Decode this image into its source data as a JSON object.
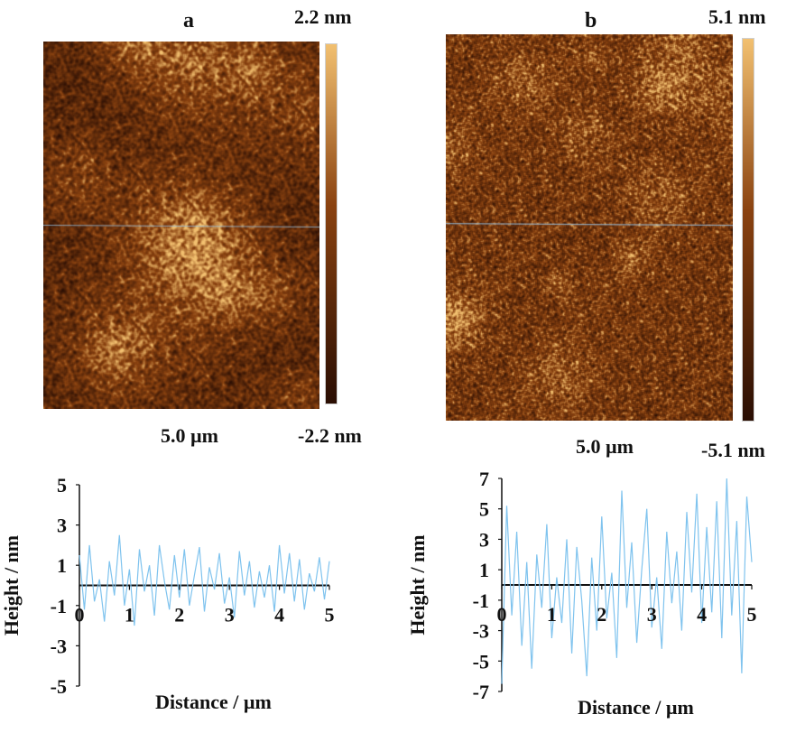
{
  "panel_a": {
    "letter": "a",
    "scale_max": "2.2 nm",
    "scale_min": "-2.2 nm",
    "scan_size": "5.0 µm"
  },
  "panel_b": {
    "letter": "b",
    "scale_max": "5.1 nm",
    "scale_min": "-5.1 nm",
    "scan_size": "5.0 µm"
  },
  "colors": {
    "afm_dark": "#2a0e03",
    "afm_mid": "#8a4210",
    "afm_light": "#f2c070",
    "profile_line": "#7fc3ee",
    "axis": "#111111"
  },
  "chart_data": [
    {
      "type": "line",
      "xlabel": "Distance / µm",
      "ylabel": "Height / nm",
      "xlim": [
        0,
        5
      ],
      "ylim": [
        -5,
        5
      ],
      "x_ticks": [
        "0",
        "1",
        "2",
        "3",
        "4",
        "5"
      ],
      "y_ticks": [
        "5",
        "3",
        "1",
        "-1",
        "-3",
        "-5"
      ],
      "series": [
        {
          "x": [
            0.0,
            0.1,
            0.2,
            0.3,
            0.4,
            0.5,
            0.6,
            0.7,
            0.8,
            0.9,
            1.0,
            1.1,
            1.2,
            1.3,
            1.4,
            1.5,
            1.6,
            1.7,
            1.8,
            1.9,
            2.0,
            2.1,
            2.2,
            2.3,
            2.4,
            2.5,
            2.6,
            2.7,
            2.8,
            2.9,
            3.0,
            3.1,
            3.2,
            3.3,
            3.4,
            3.5,
            3.6,
            3.7,
            3.8,
            3.9,
            4.0,
            4.1,
            4.2,
            4.3,
            4.4,
            4.5,
            4.6,
            4.7,
            4.8,
            4.9,
            5.0
          ],
          "values": [
            1.5,
            -1.2,
            2.0,
            -0.8,
            0.3,
            -1.8,
            1.2,
            -0.5,
            2.5,
            -1.0,
            0.8,
            -2.0,
            1.8,
            -0.3,
            1.0,
            -1.5,
            2.0,
            0.2,
            -1.2,
            1.5,
            -0.6,
            1.8,
            -1.0,
            0.5,
            1.9,
            -1.3,
            0.9,
            -0.2,
            1.6,
            -0.9,
            0.4,
            -1.6,
            1.7,
            -0.5,
            1.2,
            -1.1,
            0.7,
            -0.6,
            1.0,
            -1.3,
            2.0,
            -0.4,
            1.6,
            -0.8,
            1.3,
            -1.2,
            0.6,
            -0.3,
            1.4,
            -0.7,
            1.2
          ]
        }
      ]
    },
    {
      "type": "line",
      "xlabel": "Distance / µm",
      "ylabel": "Height / nm",
      "xlim": [
        0,
        5
      ],
      "ylim": [
        -7,
        7
      ],
      "x_ticks": [
        "0",
        "1",
        "2",
        "3",
        "4",
        "5"
      ],
      "y_ticks": [
        "7",
        "5",
        "3",
        "1",
        "-1",
        "-3",
        "-5",
        "-7"
      ],
      "series": [
        {
          "x": [
            0.0,
            0.1,
            0.2,
            0.3,
            0.4,
            0.5,
            0.6,
            0.7,
            0.8,
            0.9,
            1.0,
            1.1,
            1.2,
            1.3,
            1.4,
            1.5,
            1.6,
            1.7,
            1.8,
            1.9,
            2.0,
            2.1,
            2.2,
            2.3,
            2.4,
            2.5,
            2.6,
            2.7,
            2.8,
            2.9,
            3.0,
            3.1,
            3.2,
            3.3,
            3.4,
            3.5,
            3.6,
            3.7,
            3.8,
            3.9,
            4.0,
            4.1,
            4.2,
            4.3,
            4.4,
            4.5,
            4.6,
            4.7,
            4.8,
            4.9,
            5.0
          ],
          "values": [
            -6.5,
            5.2,
            -2.0,
            3.5,
            -4.0,
            1.5,
            -5.5,
            2.0,
            -1.5,
            4.0,
            -3.5,
            0.5,
            -2.5,
            3.0,
            -4.5,
            2.5,
            -1.0,
            -6.0,
            1.8,
            -3.0,
            4.5,
            -2.2,
            0.8,
            -4.8,
            6.2,
            -1.5,
            2.8,
            -3.8,
            1.0,
            5.0,
            -2.8,
            0.5,
            -4.2,
            3.5,
            -1.2,
            2.2,
            -3.0,
            4.8,
            -0.5,
            6.0,
            -2.5,
            3.8,
            -1.8,
            5.5,
            -3.5,
            7.0,
            -2.0,
            4.2,
            -5.8,
            5.8,
            1.5
          ]
        }
      ]
    }
  ]
}
